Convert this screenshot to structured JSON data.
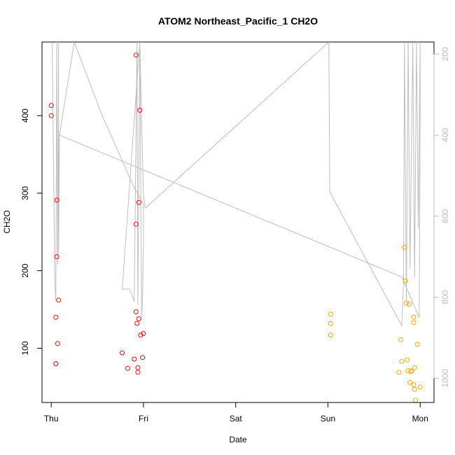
{
  "chart_data": {
    "type": "scatter",
    "title": "ATOM2 Northeast_Pacific_1 CH2O",
    "xlabel": "Date",
    "ylabel": "CH2O",
    "xlim": [
      -0.1,
      4.15
    ],
    "ylim": [
      30,
      495
    ],
    "x_ticks": [
      {
        "value": 0,
        "label": "Thu"
      },
      {
        "value": 1,
        "label": "Fri"
      },
      {
        "value": 2,
        "label": "Sat"
      },
      {
        "value": 3,
        "label": "Sun"
      },
      {
        "value": 4,
        "label": "Mon"
      }
    ],
    "y_ticks": [
      100,
      200,
      300,
      400
    ],
    "y2_ticks": [
      200,
      400,
      600,
      800,
      1000
    ],
    "y2lim": [
      1060,
      170
    ],
    "y2_reversed": true,
    "grid": false,
    "colors": {
      "red": "#ff0000",
      "orange": "#ffa500",
      "gray_line": "#bebebe",
      "right_axis": "#bdbdbd"
    },
    "series": [
      {
        "color": "#ff0000",
        "points": [
          [
            0.0,
            413
          ],
          [
            0.0,
            400
          ],
          [
            0.05,
            80
          ],
          [
            0.05,
            140
          ],
          [
            0.06,
            291
          ],
          [
            0.06,
            218
          ],
          [
            0.07,
            106
          ],
          [
            0.08,
            162
          ],
          [
            0.77,
            94
          ],
          [
            0.83,
            74
          ],
          [
            0.9,
            86
          ],
          [
            0.92,
            478
          ],
          [
            0.92,
            147
          ],
          [
            0.92,
            260
          ],
          [
            0.93,
            132
          ],
          [
            0.94,
            75
          ],
          [
            0.94,
            69
          ],
          [
            0.95,
            288
          ],
          [
            0.95,
            138
          ],
          [
            0.96,
            407
          ],
          [
            0.97,
            117
          ],
          [
            0.99,
            88
          ],
          [
            1.0,
            119
          ]
        ]
      },
      {
        "color": "#ffa500",
        "points": [
          [
            3.03,
            144
          ],
          [
            3.03,
            132
          ],
          [
            3.03,
            117
          ],
          [
            3.77,
            69
          ],
          [
            3.79,
            111
          ],
          [
            3.8,
            83
          ],
          [
            3.83,
            230
          ],
          [
            3.84,
            187
          ],
          [
            3.85,
            158
          ],
          [
            3.86,
            85
          ],
          [
            3.87,
            71
          ],
          [
            3.88,
            157
          ],
          [
            3.89,
            56
          ],
          [
            3.9,
            70
          ],
          [
            3.91,
            71
          ],
          [
            3.93,
            53
          ],
          [
            3.93,
            140
          ],
          [
            3.93,
            133
          ],
          [
            3.94,
            75
          ],
          [
            3.94,
            47
          ],
          [
            3.95,
            33
          ],
          [
            3.97,
            105
          ],
          [
            4.0,
            50
          ]
        ]
      }
    ],
    "gray_line": [
      [
        0.01,
        170
      ],
      [
        0.04,
        770
      ],
      [
        0.05,
        810
      ],
      [
        0.06,
        170
      ],
      [
        0.07,
        720
      ],
      [
        0.08,
        170
      ],
      [
        0.08,
        690
      ],
      [
        0.09,
        400
      ],
      [
        0.25,
        170
      ],
      [
        0.55,
        350
      ],
      [
        0.9,
        530
      ],
      [
        1.0,
        570
      ],
      [
        1.0,
        670
      ],
      [
        0.99,
        800
      ],
      [
        0.98,
        850
      ],
      [
        0.96,
        170
      ],
      [
        0.94,
        820
      ],
      [
        0.93,
        170
      ],
      [
        0.9,
        810
      ],
      [
        0.85,
        780
      ],
      [
        0.77,
        780
      ],
      [
        0.96,
        170
      ],
      [
        1.0,
        550
      ],
      [
        1.02,
        580
      ],
      [
        3.01,
        170
      ],
      [
        3.02,
        540
      ],
      [
        3.8,
        870
      ],
      [
        3.82,
        760
      ],
      [
        3.83,
        170
      ],
      [
        3.85,
        810
      ],
      [
        3.87,
        170
      ],
      [
        3.89,
        730
      ],
      [
        3.92,
        170
      ],
      [
        3.94,
        750
      ],
      [
        3.96,
        170
      ],
      [
        3.98,
        630
      ],
      [
        4.0,
        170
      ],
      [
        4.0,
        370
      ],
      [
        3.99,
        850
      ],
      [
        3.8,
        750
      ],
      [
        0.09,
        400
      ]
    ]
  }
}
